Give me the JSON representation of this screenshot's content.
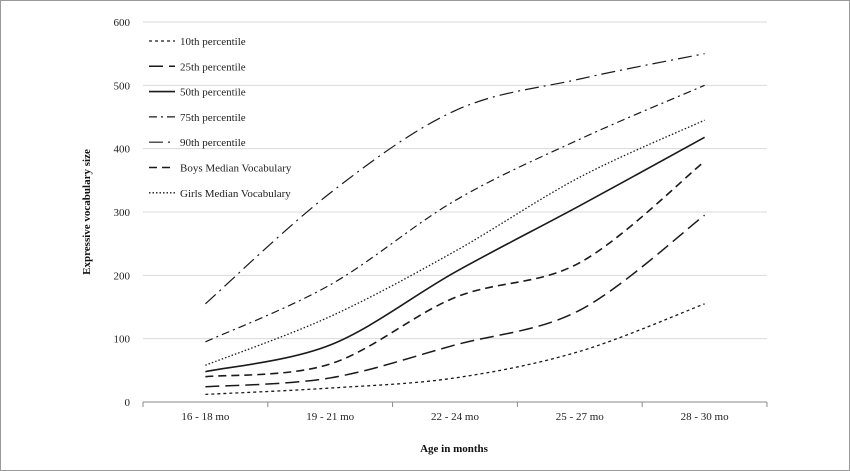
{
  "chart_data": {
    "type": "line",
    "title": "",
    "xlabel": "Age in months",
    "ylabel": "Expressive vocabulary size",
    "categories": [
      "16 - 18 mo",
      "19 - 21 mo",
      "22 - 24 mo",
      "25 - 27 mo",
      "28 - 30 mo"
    ],
    "ylim": [
      0,
      600
    ],
    "yticks": [
      0,
      100,
      200,
      300,
      400,
      500,
      600
    ],
    "grid": true,
    "legend_position": "top-left",
    "series": [
      {
        "name": "10th percentile",
        "values": [
          12,
          22,
          38,
          80,
          155
        ],
        "dash": "3,3",
        "width": 1.3
      },
      {
        "name": "25th percentile",
        "values": [
          24,
          38,
          90,
          145,
          295
        ],
        "dash": "14,6",
        "width": 1.5
      },
      {
        "name": "50th percentile",
        "values": [
          48,
          90,
          205,
          310,
          418
        ],
        "dash": "",
        "width": 1.6
      },
      {
        "name": "75th percentile",
        "values": [
          95,
          185,
          318,
          415,
          500
        ],
        "dash": "8,4,2,4",
        "width": 1.2
      },
      {
        "name": "90th percentile",
        "values": [
          155,
          330,
          460,
          510,
          550
        ],
        "dash": "14,5,2,5",
        "width": 1.2
      },
      {
        "name": "Boys Median Vocabulary",
        "values": [
          40,
          60,
          165,
          220,
          380
        ],
        "dash": "8,5",
        "width": 1.6
      },
      {
        "name": "Girls Median Vocabulary",
        "values": [
          58,
          135,
          238,
          355,
          445
        ],
        "dash": "1.5,2",
        "width": 1.3
      }
    ]
  }
}
